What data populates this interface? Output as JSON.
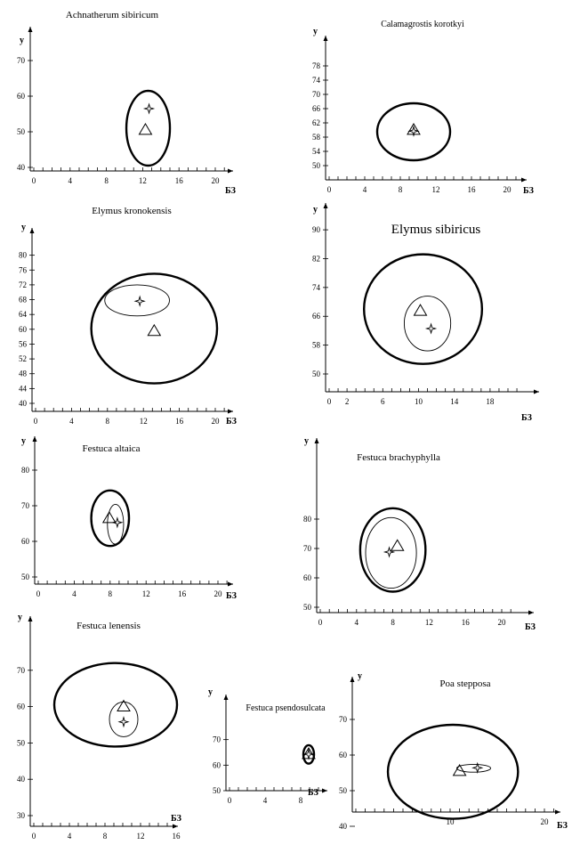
{
  "chart_data": [
    {
      "type": "scatter",
      "title": "Achnatherum sibiricum",
      "ylabel": "y",
      "xlabel": "БЗ",
      "xticks": [
        "0",
        "4",
        "8",
        "12",
        "16",
        "20"
      ],
      "xlim": [
        0,
        21
      ],
      "yticks": [
        "40",
        "50",
        "60",
        "70"
      ],
      "ylim": [
        39,
        74
      ],
      "ellipses": [
        {
          "cx": 12.6,
          "cy": 51,
          "rx": 2.4,
          "ry": 10.5,
          "weight": "thick"
        }
      ],
      "triangle": {
        "x": 12.3,
        "y": 50.5
      },
      "star": {
        "x": 12.7,
        "y": 56.5
      }
    },
    {
      "type": "scatter",
      "title": "Calamagrostis korotkyi",
      "ylabel": "y",
      "xlabel": "БЗ",
      "xticks": [
        "0",
        "4",
        "8",
        "12",
        "16",
        "20"
      ],
      "xlim": [
        0,
        21
      ],
      "yticks": [
        "50",
        "54",
        "58",
        "62",
        "66",
        "70",
        "74",
        "78"
      ],
      "ylim": [
        49,
        81
      ],
      "ellipses": [
        {
          "cx": 9.5,
          "cy": 59.5,
          "rx": 4.1,
          "ry": 8,
          "weight": "thick"
        }
      ],
      "triangle": {
        "x": 9.5,
        "y": 60
      },
      "star": {
        "x": 9.5,
        "y": 59.7
      }
    },
    {
      "type": "scatter",
      "title": "Elymus kronokensis",
      "ylabel": "y",
      "xlabel": "БЗ",
      "xticks": [
        "0",
        "4",
        "8",
        "12",
        "16",
        "20"
      ],
      "xlim": [
        0,
        21
      ],
      "yticks": [
        "40",
        "44",
        "48",
        "52",
        "56",
        "60",
        "64",
        "68",
        "72",
        "76",
        "80"
      ],
      "ylim": [
        39,
        83
      ],
      "ellipses": [
        {
          "cx": 13.2,
          "cy": 60.2,
          "rx": 7,
          "ry": 14.8,
          "weight": "thick"
        },
        {
          "cx": 11.3,
          "cy": 67.8,
          "rx": 3.6,
          "ry": 4.2,
          "weight": "thin"
        }
      ],
      "triangle": {
        "x": 13.2,
        "y": 59.5
      },
      "star": {
        "x": 11.6,
        "y": 67.6
      }
    },
    {
      "type": "scatter",
      "title": "Elymus sibiricus",
      "ylabel": "y",
      "xlabel": "БЗ",
      "xticks": [
        "0",
        "2",
        "6",
        "10",
        "14",
        "18"
      ],
      "xlim": [
        0,
        21
      ],
      "yticks": [
        "50",
        "58",
        "66",
        "74",
        "82",
        "90"
      ],
      "ylim": [
        46,
        92
      ],
      "ellipses": [
        {
          "cx": 10.5,
          "cy": 68,
          "rx": 6.6,
          "ry": 15.2,
          "weight": "thick"
        },
        {
          "cx": 11,
          "cy": 64,
          "rx": 2.6,
          "ry": 7.6,
          "weight": "thin"
        }
      ],
      "triangle": {
        "x": 10.2,
        "y": 67.5
      },
      "star": {
        "x": 11.4,
        "y": 62.6
      }
    },
    {
      "type": "scatter",
      "title": "Festuca altaica",
      "ylabel": "y",
      "xlabel": "БЗ",
      "xticks": [
        "0",
        "4",
        "8",
        "12",
        "16",
        "20"
      ],
      "xlim": [
        0,
        21
      ],
      "yticks": [
        "50",
        "60",
        "70",
        "80"
      ],
      "ylim": [
        48,
        83
      ],
      "ellipses": [
        {
          "cx": 8,
          "cy": 66.5,
          "rx": 2.1,
          "ry": 7.8,
          "weight": "thick"
        },
        {
          "cx": 8.6,
          "cy": 64.8,
          "rx": 0.9,
          "ry": 5.6,
          "weight": "thin"
        }
      ],
      "triangle": {
        "x": 7.9,
        "y": 66.5
      },
      "star": {
        "x": 8.8,
        "y": 65.3
      }
    },
    {
      "type": "scatter",
      "title": "Festuca brachyphylla",
      "ylabel": "y",
      "xlabel": "БЗ",
      "xticks": [
        "0",
        "4",
        "8",
        "12",
        "16",
        "20"
      ],
      "xlim": [
        0,
        21
      ],
      "yticks": [
        "50",
        "60",
        "70",
        "80"
      ],
      "ylim": [
        48,
        90
      ],
      "ellipses": [
        {
          "cx": 8,
          "cy": 69.5,
          "rx": 3.6,
          "ry": 14.2,
          "weight": "thick"
        },
        {
          "cx": 7.8,
          "cy": 68.5,
          "rx": 2.8,
          "ry": 12,
          "weight": "thin"
        }
      ],
      "triangle": {
        "x": 8.5,
        "y": 70.8
      },
      "star": {
        "x": 7.6,
        "y": 68.8
      }
    },
    {
      "type": "scatter",
      "title": "Festuca lenensis",
      "ylabel": "y",
      "xlabel": "БЗ",
      "xticks": [
        "0",
        "4",
        "8",
        "12",
        "16"
      ],
      "xlim": [
        0,
        17.5
      ],
      "yticks": [
        "30",
        "40",
        "50",
        "60",
        "70"
      ],
      "ylim": [
        28,
        76
      ],
      "ellipses": [
        {
          "cx": 9.2,
          "cy": 60.5,
          "rx": 6.9,
          "ry": 11.5,
          "weight": "thick"
        },
        {
          "cx": 10.1,
          "cy": 56.5,
          "rx": 1.6,
          "ry": 4.8,
          "weight": "thin"
        }
      ],
      "triangle": {
        "x": 10.1,
        "y": 60
      },
      "star": {
        "x": 10.1,
        "y": 55.8
      }
    },
    {
      "type": "scatter",
      "title": "Festuca psendosulcata",
      "ylabel": "y",
      "xlabel": "БЗ",
      "xticks": [
        "0",
        "4",
        "8"
      ],
      "xlim": [
        0,
        10.5
      ],
      "yticks": [
        "50",
        "60",
        "70"
      ],
      "ylim": [
        48,
        77
      ],
      "ellipses": [
        {
          "cx": 8.9,
          "cy": 64.2,
          "rx": 0.6,
          "ry": 3.6,
          "weight": "thick"
        }
      ],
      "triangle": {
        "x": 8.9,
        "y": 64.3
      },
      "star": {
        "x": 8.9,
        "y": 64.3
      }
    },
    {
      "type": "scatter",
      "title": "Poa stepposa",
      "ylabel": "y",
      "xlabel": "БЗ",
      "xticks": [
        "10",
        "20"
      ],
      "xlim": [
        0,
        21
      ],
      "yticks": [
        "40",
        "50",
        "60",
        "70"
      ],
      "ylim": [
        38,
        73
      ],
      "ellipses": [
        {
          "cx": 10.3,
          "cy": 55.3,
          "rx": 6.9,
          "ry": 13.2,
          "weight": "thick"
        },
        {
          "cx": 12.5,
          "cy": 56.3,
          "rx": 1.8,
          "ry": 1.1,
          "weight": "thin"
        }
      ],
      "triangle": {
        "x": 11,
        "y": 55.5
      },
      "star": {
        "x": 12.9,
        "y": 56.4
      }
    }
  ]
}
